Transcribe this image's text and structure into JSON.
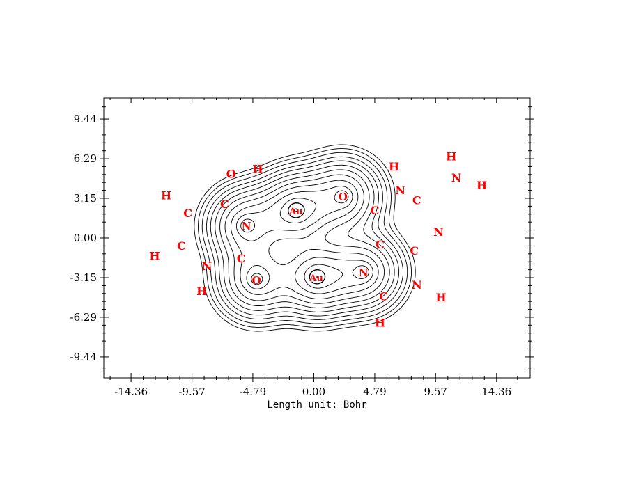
{
  "chart_data": {
    "type": "contour",
    "xlabel": "Length unit: Bohr",
    "ylabel": "",
    "x_ticks": [
      "-14.36",
      "-9.57",
      "-4.79",
      "0.00",
      "4.79",
      "9.57",
      "14.36"
    ],
    "y_ticks": [
      "9.44",
      "6.29",
      "3.15",
      "0.00",
      "-3.15",
      "-6.29",
      "-9.44"
    ],
    "x_tick_values": [
      -14.36,
      -9.57,
      -4.79,
      0.0,
      4.79,
      9.57,
      14.36
    ],
    "y_tick_values": [
      9.44,
      6.29,
      3.15,
      0.0,
      -3.15,
      -6.29,
      -9.44
    ],
    "xlim": [
      -16.5,
      17.0
    ],
    "ylim": [
      -11.1,
      11.1
    ],
    "contour_color": "#000000",
    "label_color": "#ff0000",
    "contour_centers": [
      {
        "label": "Au",
        "x": -1.4,
        "y": 2.2,
        "peaks": 8
      },
      {
        "label": "Au",
        "x": 0.2,
        "y": -3.1,
        "peaks": 8
      },
      {
        "label": "O",
        "x": 2.3,
        "y": 3.3,
        "peaks": 6
      },
      {
        "label": "O",
        "x": -4.5,
        "y": -3.3,
        "peaks": 6
      },
      {
        "label": "N",
        "x": 3.9,
        "y": -2.7,
        "peaks": 6
      },
      {
        "label": "N",
        "x": -5.3,
        "y": 1.0,
        "peaks": 6
      }
    ],
    "atoms": [
      {
        "label": "O",
        "x": -6.5,
        "y": 5.1
      },
      {
        "label": "H",
        "x": -4.4,
        "y": 5.5
      },
      {
        "label": "H",
        "x": -11.6,
        "y": 3.4
      },
      {
        "label": "C",
        "x": -9.9,
        "y": 2.0
      },
      {
        "label": "C",
        "x": -7.0,
        "y": 2.7
      },
      {
        "label": "C",
        "x": -10.4,
        "y": -0.6
      },
      {
        "label": "H",
        "x": -12.5,
        "y": -1.4
      },
      {
        "label": "N",
        "x": -8.4,
        "y": -2.2
      },
      {
        "label": "C",
        "x": -5.7,
        "y": -1.6
      },
      {
        "label": "H",
        "x": -8.8,
        "y": -4.2
      },
      {
        "label": "H",
        "x": 6.3,
        "y": 5.7
      },
      {
        "label": "N",
        "x": 6.8,
        "y": 3.8
      },
      {
        "label": "C",
        "x": 4.8,
        "y": 2.2
      },
      {
        "label": "C",
        "x": 5.2,
        "y": -0.5
      },
      {
        "label": "C",
        "x": 8.1,
        "y": 3.0
      },
      {
        "label": "N",
        "x": 9.8,
        "y": 0.5
      },
      {
        "label": "C",
        "x": 7.9,
        "y": -1.0
      },
      {
        "label": "N",
        "x": 8.1,
        "y": -3.7
      },
      {
        "label": "C",
        "x": 5.5,
        "y": -4.6
      },
      {
        "label": "H",
        "x": 10.0,
        "y": -4.7
      },
      {
        "label": "H",
        "x": 5.2,
        "y": -6.7
      },
      {
        "label": "H",
        "x": 10.8,
        "y": 6.5
      },
      {
        "label": "N",
        "x": 11.2,
        "y": 4.8
      },
      {
        "label": "H",
        "x": 13.2,
        "y": 4.2
      }
    ]
  }
}
